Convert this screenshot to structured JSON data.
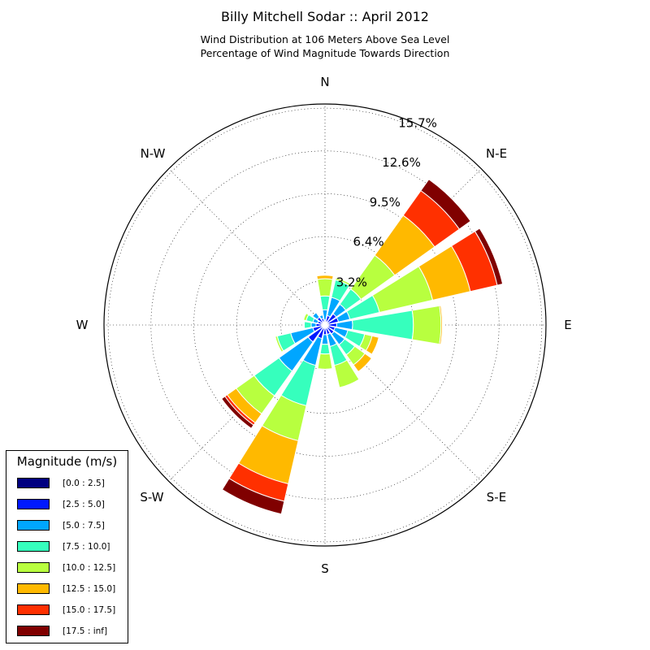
{
  "chart_data": {
    "type": "windrose",
    "title": "Billy Mitchell Sodar :: April 2012",
    "subtitle_lines": [
      "Wind Distribution at 106 Meters Above Sea Level",
      "Percentage of Wind Magnitude Towards Direction"
    ],
    "direction_labels": [
      "N",
      "N-E",
      "E",
      "S-E",
      "S",
      "S-W",
      "W",
      "N-W"
    ],
    "radial_tick_labels": [
      "3.2%",
      "6.4%",
      "9.5%",
      "12.6%",
      "15.7%"
    ],
    "radial_ticks": [
      3.2,
      6.4,
      9.5,
      12.6,
      15.7
    ],
    "rmax": 16.0,
    "legend": {
      "title": "Magnitude (m/s)",
      "placement": "lower-left",
      "bins": [
        {
          "label": "[0.0 : 2.5]",
          "color": "#000080"
        },
        {
          "label": "[2.5 : 5.0]",
          "color": "#0019ff"
        },
        {
          "label": "[5.0 : 7.5]",
          "color": "#00a6ff"
        },
        {
          "label": "[7.5 : 10.0]",
          "color": "#36ffbd"
        },
        {
          "label": "[10.0 : 12.5]",
          "color": "#b8ff3f"
        },
        {
          "label": "[12.5 : 15.0]",
          "color": "#ffb900"
        },
        {
          "label": "[15.0 : 17.5]",
          "color": "#ff3000"
        },
        {
          "label": "[17.5 : inf]",
          "color": "#800000"
        }
      ]
    },
    "bar_angular_width_deg": 19,
    "sectors": [
      {
        "direction_deg": 0,
        "cumulative_pct": [
          0.25,
          0.35,
          1.1,
          2.1,
          3.35,
          3.6,
          3.6,
          3.6
        ]
      },
      {
        "direction_deg": 22.5,
        "cumulative_pct": [
          0.25,
          0.7,
          2.05,
          3.35,
          3.5,
          3.5,
          3.5,
          3.5
        ]
      },
      {
        "direction_deg": 45,
        "cumulative_pct": [
          0.25,
          1.0,
          1.85,
          3.2,
          6.2,
          9.75,
          11.95,
          12.95
        ]
      },
      {
        "direction_deg": 67.5,
        "cumulative_pct": [
          0.25,
          1.0,
          1.85,
          4.05,
          8.0,
          10.8,
          12.8,
          13.2
        ]
      },
      {
        "direction_deg": 90,
        "cumulative_pct": [
          0.25,
          0.85,
          2.0,
          6.4,
          8.4,
          8.5,
          8.5,
          8.5
        ]
      },
      {
        "direction_deg": 112.5,
        "cumulative_pct": [
          0.25,
          0.75,
          1.7,
          2.95,
          3.5,
          4.0,
          4.0,
          4.0
        ]
      },
      {
        "direction_deg": 135,
        "cumulative_pct": [
          0.25,
          0.8,
          1.75,
          2.65,
          3.55,
          4.15,
          4.15,
          4.15
        ]
      },
      {
        "direction_deg": 157.5,
        "cumulative_pct": [
          0.25,
          0.7,
          1.6,
          3.0,
          4.65,
          4.65,
          4.65,
          4.65
        ]
      },
      {
        "direction_deg": 180,
        "cumulative_pct": [
          0.25,
          0.7,
          1.4,
          2.1,
          3.2,
          3.2,
          3.2,
          3.2
        ]
      },
      {
        "direction_deg": 202.5,
        "cumulative_pct": [
          0.25,
          1.0,
          3.0,
          6.0,
          8.6,
          11.8,
          13.1,
          14.05
        ]
      },
      {
        "direction_deg": 225,
        "cumulative_pct": [
          0.25,
          1.5,
          4.1,
          6.3,
          7.9,
          8.7,
          8.9,
          9.2
        ]
      },
      {
        "direction_deg": 247.5,
        "cumulative_pct": [
          0.25,
          0.9,
          2.55,
          3.55,
          3.7,
          3.7,
          3.7,
          3.7
        ]
      },
      {
        "direction_deg": 270,
        "cumulative_pct": [
          0.25,
          0.65,
          1.0,
          1.5,
          1.5,
          1.5,
          1.5,
          1.5
        ]
      },
      {
        "direction_deg": 292.5,
        "cumulative_pct": [
          0.25,
          0.55,
          0.9,
          1.4,
          1.6,
          1.6,
          1.6,
          1.6
        ]
      },
      {
        "direction_deg": 315,
        "cumulative_pct": [
          0.25,
          0.7,
          1.1,
          1.1,
          1.1,
          1.1,
          1.1,
          1.1
        ]
      },
      {
        "direction_deg": 337.5,
        "cumulative_pct": [
          0.25,
          0.5,
          0.75,
          0.75,
          0.75,
          0.75,
          0.75,
          0.75
        ]
      }
    ]
  }
}
